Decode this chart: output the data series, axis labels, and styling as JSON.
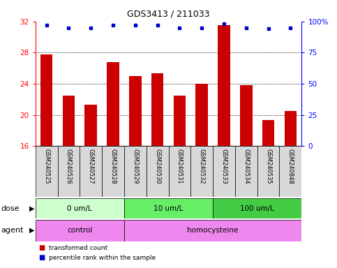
{
  "title": "GDS3413 / 211033",
  "samples": [
    "GSM240525",
    "GSM240526",
    "GSM240527",
    "GSM240528",
    "GSM240529",
    "GSM240530",
    "GSM240531",
    "GSM240532",
    "GSM240533",
    "GSM240534",
    "GSM240535",
    "GSM240848"
  ],
  "bar_values": [
    27.8,
    22.5,
    21.3,
    26.8,
    25.0,
    25.3,
    22.5,
    24.0,
    31.5,
    23.8,
    19.3,
    20.5
  ],
  "dot_values": [
    97,
    95,
    95,
    97,
    97,
    97,
    95,
    95,
    98,
    95,
    94,
    95
  ],
  "bar_color": "#cc0000",
  "dot_color": "#0000cc",
  "ylim_left": [
    16,
    32
  ],
  "ylim_right": [
    0,
    100
  ],
  "yticks_left": [
    16,
    20,
    24,
    28,
    32
  ],
  "yticks_right": [
    0,
    25,
    50,
    75,
    100
  ],
  "yticklabels_right": [
    "0",
    "25",
    "50",
    "75",
    "100%"
  ],
  "dose_groups": [
    {
      "label": "0 um/L",
      "start": 0,
      "end": 4,
      "color": "#ccffcc"
    },
    {
      "label": "10 um/L",
      "start": 4,
      "end": 8,
      "color": "#66ee66"
    },
    {
      "label": "100 um/L",
      "start": 8,
      "end": 12,
      "color": "#44cc44"
    }
  ],
  "agent_groups": [
    {
      "label": "control",
      "start": 0,
      "end": 4,
      "color": "#ee88ee"
    },
    {
      "label": "homocysteine",
      "start": 4,
      "end": 12,
      "color": "#ee88ee"
    }
  ],
  "legend_bar_label": "transformed count",
  "legend_dot_label": "percentile rank within the sample",
  "sample_bg_color": "#d8d8d8",
  "plot_bg": "#ffffff"
}
